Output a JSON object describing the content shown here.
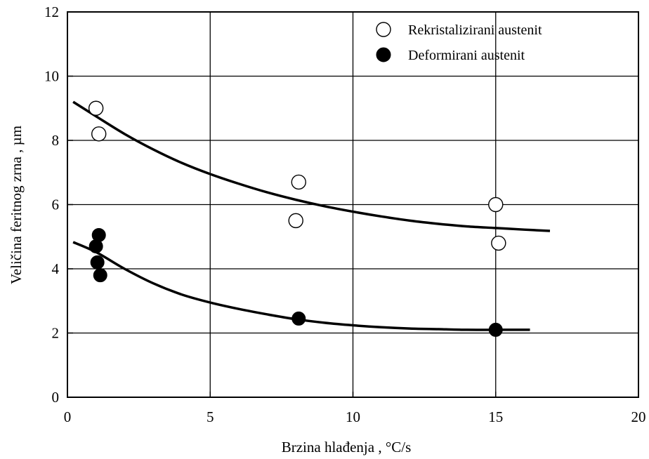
{
  "chart_data": {
    "type": "scatter",
    "xlabel": "Brzina hlađenja , °C/s",
    "ylabel": "Veličina feritnog zrna , µm",
    "xlim": [
      0,
      20
    ],
    "ylim": [
      0,
      12
    ],
    "x_ticks": [
      0,
      5,
      10,
      15,
      20
    ],
    "y_ticks": [
      0,
      2,
      4,
      6,
      8,
      10,
      12
    ],
    "grid": true,
    "legend_position": "top-right",
    "series": [
      {
        "name": "Rekristalizirani austenit",
        "marker": "open-circle",
        "points": [
          [
            1.0,
            9.0
          ],
          [
            1.1,
            8.2
          ],
          [
            8.1,
            6.7
          ],
          [
            8.0,
            5.5
          ],
          [
            15.0,
            6.0
          ],
          [
            15.1,
            4.8
          ]
        ]
      },
      {
        "name": "Deformirani austenit",
        "marker": "filled-circle",
        "points": [
          [
            1.1,
            5.05
          ],
          [
            1.0,
            4.7
          ],
          [
            1.05,
            4.2
          ],
          [
            1.15,
            3.8
          ],
          [
            8.1,
            2.45
          ],
          [
            15.0,
            2.1
          ]
        ]
      }
    ],
    "fit_curves": [
      {
        "series": "Rekristalizirani austenit",
        "points": [
          [
            0.2,
            9.2
          ],
          [
            1.0,
            8.75
          ],
          [
            2.0,
            8.2
          ],
          [
            3.0,
            7.72
          ],
          [
            4.0,
            7.3
          ],
          [
            5.0,
            6.95
          ],
          [
            6.0,
            6.65
          ],
          [
            7.0,
            6.38
          ],
          [
            8.0,
            6.15
          ],
          [
            9.0,
            5.95
          ],
          [
            10.0,
            5.78
          ],
          [
            11.0,
            5.63
          ],
          [
            12.0,
            5.5
          ],
          [
            13.0,
            5.4
          ],
          [
            14.0,
            5.32
          ],
          [
            15.0,
            5.27
          ],
          [
            16.0,
            5.22
          ],
          [
            16.9,
            5.18
          ]
        ]
      },
      {
        "series": "Deformirani austenit",
        "points": [
          [
            0.2,
            4.83
          ],
          [
            1.0,
            4.52
          ],
          [
            2.0,
            4.0
          ],
          [
            3.0,
            3.55
          ],
          [
            4.0,
            3.2
          ],
          [
            5.0,
            2.95
          ],
          [
            6.0,
            2.75
          ],
          [
            7.0,
            2.58
          ],
          [
            8.0,
            2.43
          ],
          [
            9.0,
            2.32
          ],
          [
            10.0,
            2.24
          ],
          [
            11.0,
            2.18
          ],
          [
            12.0,
            2.14
          ],
          [
            13.0,
            2.12
          ],
          [
            14.0,
            2.1
          ],
          [
            15.0,
            2.1
          ],
          [
            16.2,
            2.1
          ]
        ]
      }
    ]
  }
}
